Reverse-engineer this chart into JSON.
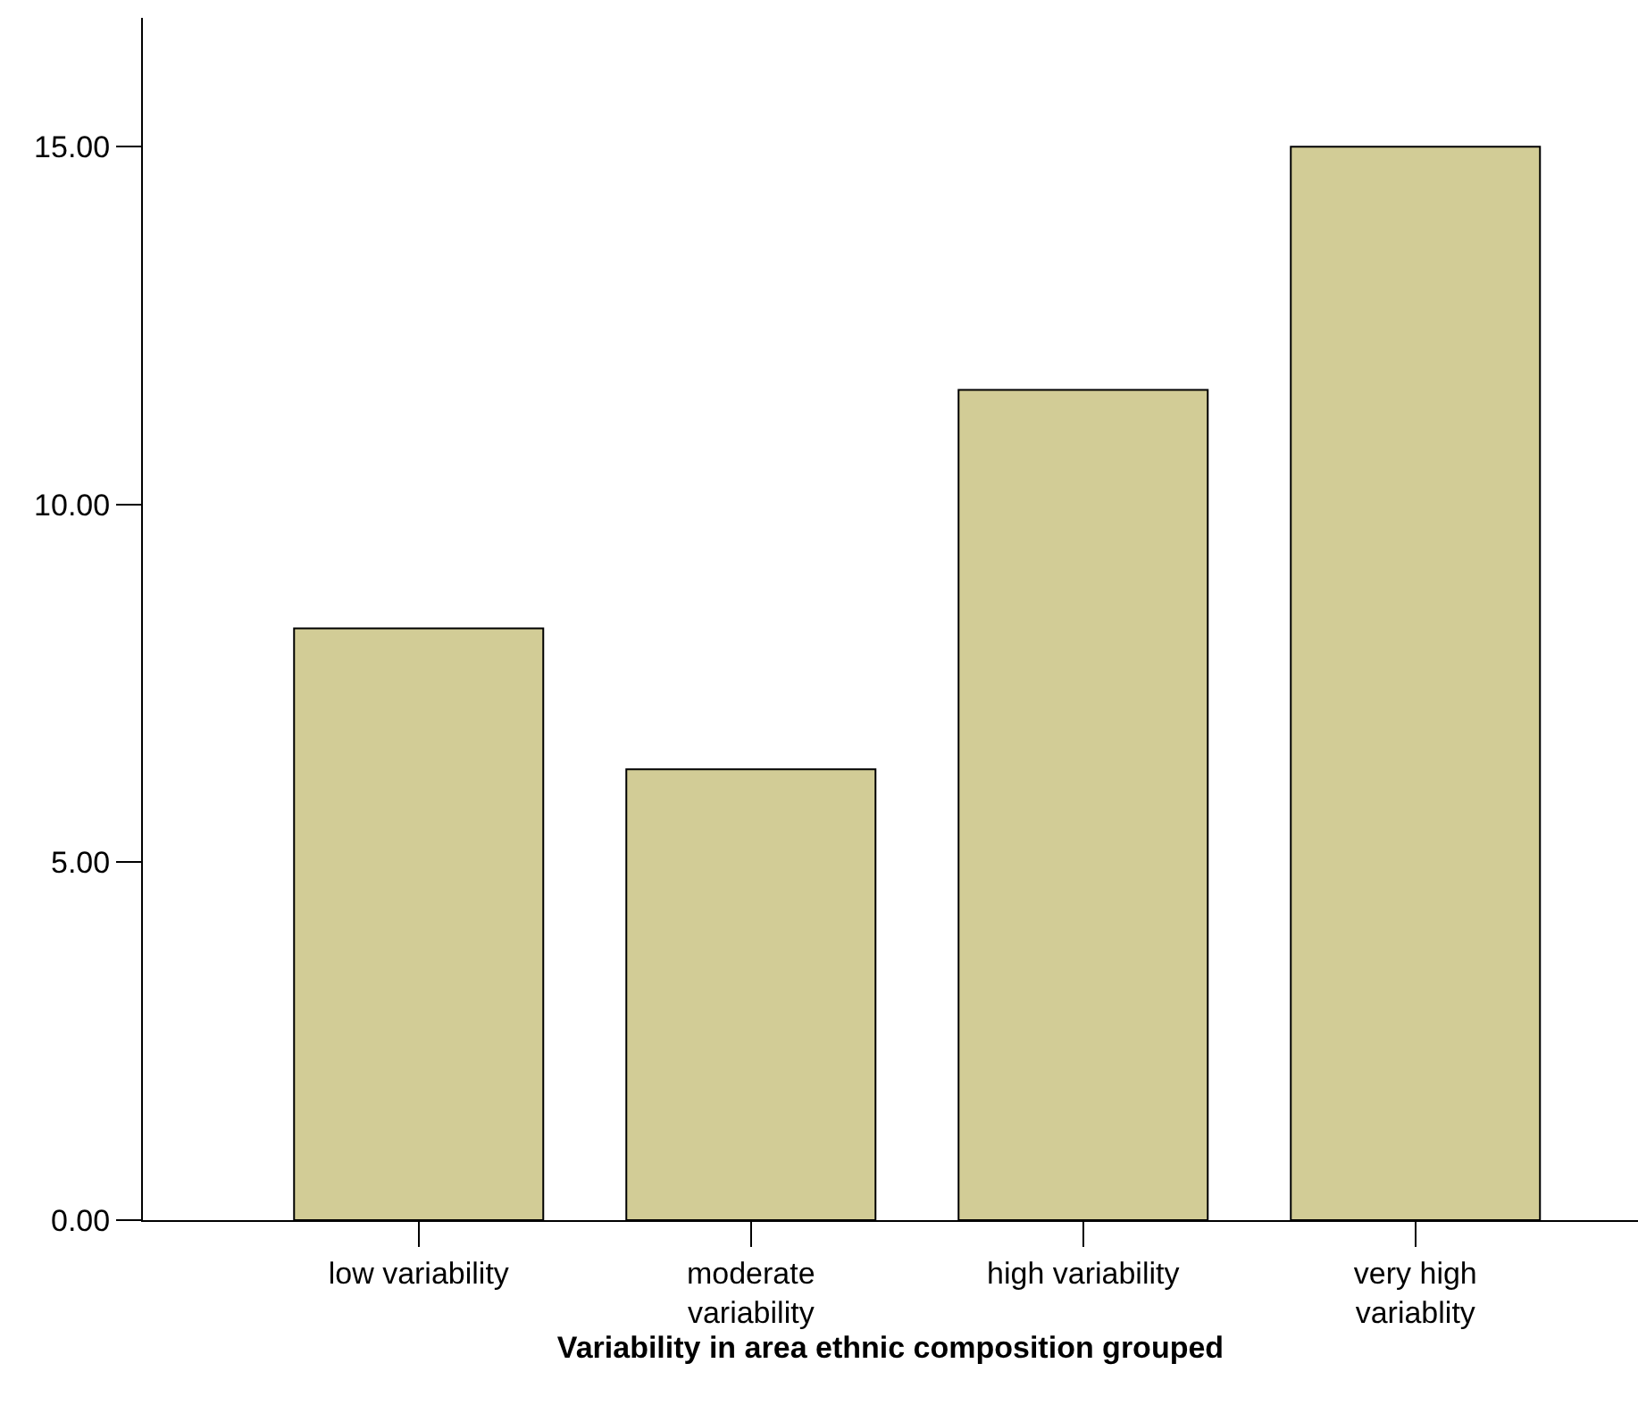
{
  "chart_data": {
    "type": "bar",
    "xlabel": "Variability in area ethnic composition grouped",
    "categories": [
      "low variability",
      "moderate variability",
      "high variability",
      "very high variablity"
    ],
    "values": [
      8.27,
      6.3,
      11.6,
      15.0
    ],
    "color": "#d2cc96",
    "ylim": [
      0,
      16.8
    ],
    "yticks": [
      {
        "value": 0,
        "label": "0.00"
      },
      {
        "value": 5,
        "label": "5.00"
      },
      {
        "value": 10,
        "label": "10.00"
      },
      {
        "value": 15,
        "label": "15.00"
      }
    ],
    "grid": false
  }
}
